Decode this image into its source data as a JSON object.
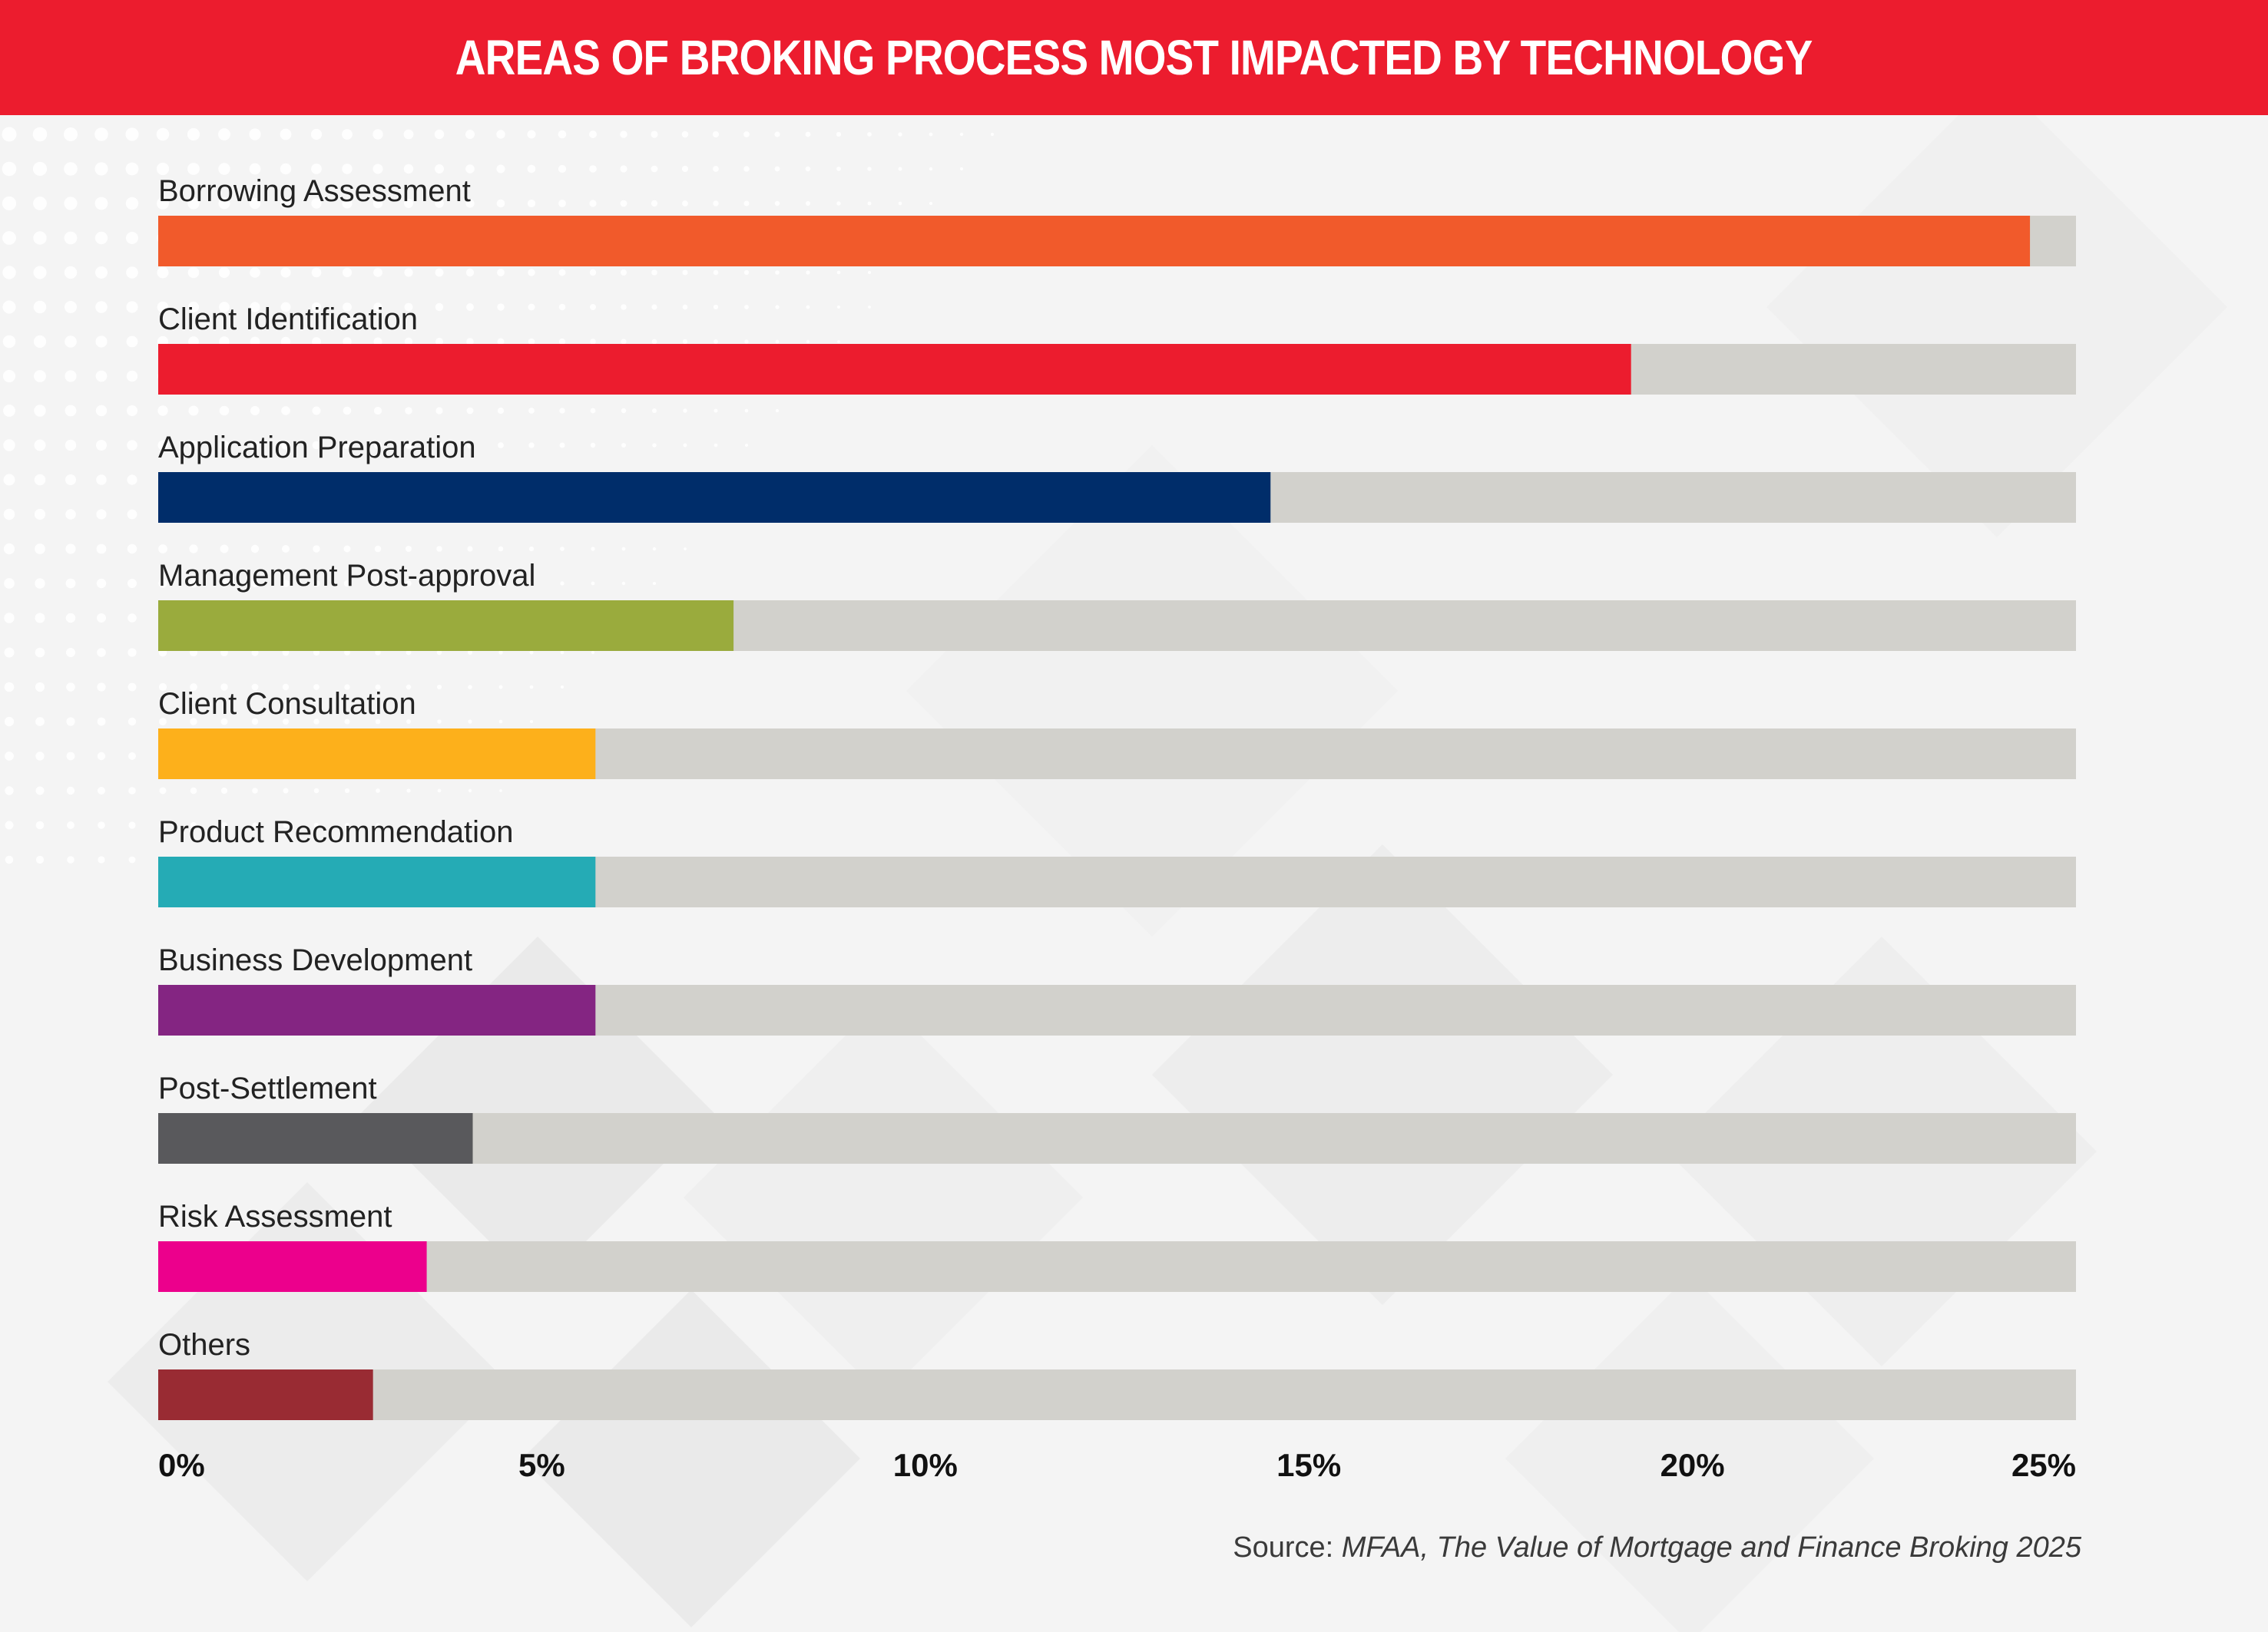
{
  "title": "AREAS OF BROKING PROCESS MOST IMPACTED BY TECHNOLOGY",
  "source": {
    "prefix": "Source: ",
    "text": "MFAA, The Value of Mortgage and Finance Broking 2025"
  },
  "colors": {
    "title_bar": "#ec1c2e",
    "track": "#d2d1cc",
    "label": "#222222"
  },
  "chart_data": {
    "type": "bar",
    "orientation": "horizontal",
    "title": "AREAS OF BROKING PROCESS MOST IMPACTED BY TECHNOLOGY",
    "xlim": [
      0,
      25
    ],
    "x_ticks": [
      "0%",
      "5%",
      "10%",
      "15%",
      "20%",
      "25%"
    ],
    "grid": false,
    "categories": [
      "Borrowing Assessment",
      "Client Identification",
      "Application Preparation",
      "Management Post-approval",
      "Client Consultation",
      "Product Recommendation",
      "Business Development",
      "Post-Settlement",
      "Risk Assessment",
      "Others"
    ],
    "values": [
      24.4,
      19.2,
      14.5,
      7.5,
      5.7,
      5.7,
      5.7,
      4.1,
      3.5,
      2.8
    ],
    "bar_colors": [
      "#f15a2b",
      "#ec1c2e",
      "#002d6a",
      "#9aab3d",
      "#fdb01b",
      "#25abb5",
      "#842582",
      "#59595c",
      "#ec008c",
      "#992b33"
    ]
  }
}
